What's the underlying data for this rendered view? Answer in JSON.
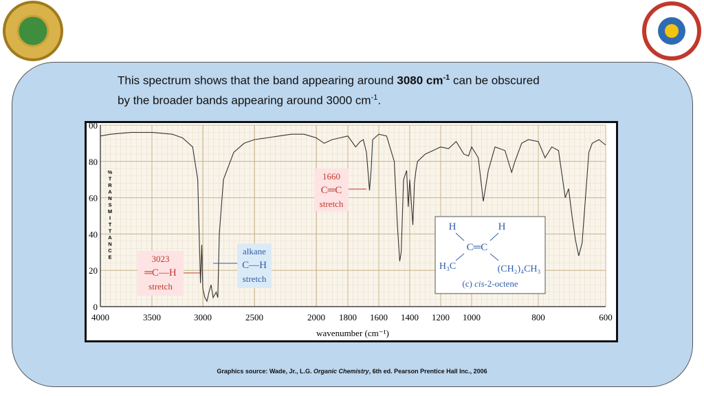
{
  "slide": {
    "line1": {
      "a": "This spectrum shows that the band appearing around ",
      "bold": "3080 cm",
      "sup": "-1",
      "b": " can be obscured"
    },
    "line2": {
      "a": "by the broader bands appearing around 3000 cm",
      "sup": "-1",
      "b": "."
    },
    "source": {
      "prefix": "Graphics source: Wade, Jr., L.G. ",
      "title": "Organic Chemistry",
      "suffix": ", 6th ed. Pearson Prentice Hall Inc., 2006"
    }
  },
  "chart_data": {
    "type": "line",
    "color": "#333",
    "x_label": "wavenumber (cm⁻¹)",
    "y_label": "%TRANSMITTANCE",
    "xlim": [
      4000,
      600
    ],
    "ylim": [
      0,
      100
    ],
    "xticks": [
      4000,
      3500,
      3000,
      2500,
      2000,
      1800,
      1600,
      1400,
      1200,
      1000,
      800,
      600
    ],
    "yticks": [
      0,
      20,
      40,
      60,
      80,
      {
        "value": 100,
        "label": "00"
      }
    ],
    "x": [
      4000,
      3900,
      3700,
      3500,
      3300,
      3200,
      3100,
      3050,
      3023,
      3010,
      3000,
      2980,
      2960,
      2940,
      2920,
      2900,
      2870,
      2855,
      2840,
      2800,
      2700,
      2600,
      2500,
      2400,
      2300,
      2200,
      2100,
      2050,
      2000,
      1950,
      1900,
      1850,
      1800,
      1750,
      1720,
      1700,
      1680,
      1660,
      1650,
      1640,
      1600,
      1550,
      1500,
      1480,
      1465,
      1455,
      1440,
      1420,
      1410,
      1400,
      1380,
      1370,
      1360,
      1350,
      1300,
      1250,
      1200,
      1150,
      1100,
      1050,
      1020,
      1000,
      980,
      965,
      950,
      930,
      900,
      880,
      870,
      850,
      830,
      800,
      780,
      760,
      740,
      720,
      710,
      700,
      690,
      680,
      670,
      660,
      650,
      640,
      620,
      600
    ],
    "values": [
      94,
      95,
      96,
      96,
      95,
      93,
      88,
      70,
      13,
      34,
      10,
      5,
      3,
      8,
      12,
      5,
      8,
      5,
      40,
      70,
      85,
      90,
      92,
      93,
      94,
      95,
      95,
      94,
      93,
      90,
      92,
      93,
      94,
      88,
      91,
      92,
      85,
      64,
      75,
      92,
      95,
      94,
      80,
      45,
      25,
      30,
      70,
      75,
      55,
      70,
      45,
      68,
      75,
      80,
      84,
      86,
      88,
      87,
      91,
      84,
      83,
      88,
      82,
      58,
      75,
      88,
      86,
      74,
      80,
      90,
      92,
      91,
      82,
      88,
      86,
      60,
      65,
      50,
      37,
      28,
      35,
      60,
      85,
      90,
      92,
      89
    ],
    "annotations": [
      {
        "lines": [
          "1660",
          "C═C",
          "stretch"
        ]
      },
      {
        "lines": [
          "3023",
          "═C—H",
          "stretch"
        ]
      },
      {
        "lines": [
          "alkane",
          "C—H",
          "stretch"
        ]
      }
    ],
    "structure": {
      "h1": "H",
      "h2": "H",
      "cc": "C═C",
      "left": "H₃C",
      "right": "(CH₂)₄CH₃",
      "caption": {
        "a": "(c) ",
        "i": "cis",
        "b": "-2-octene"
      }
    }
  }
}
